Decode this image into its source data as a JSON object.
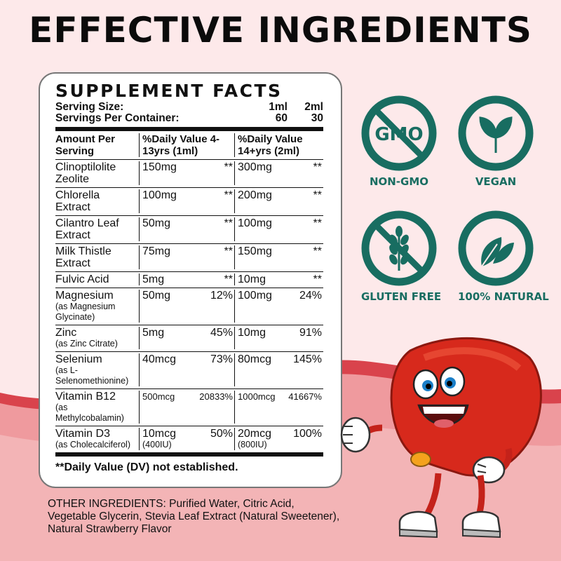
{
  "headline": "EFFECTIVE INGREDIENTS",
  "facts": {
    "title": "SUPPLEMENT FACTS",
    "serving_size_label": "Serving Size:",
    "serving_size_1": "1ml",
    "serving_size_2": "2ml",
    "servings_label": "Servings Per Container:",
    "servings_1": "60",
    "servings_2": "30",
    "col1_header": "Amount Per Serving",
    "col2_header": "%Daily Value 4-13yrs (1ml)",
    "col3_header": "%Daily Value 14+yrs (2ml)",
    "rows": [
      {
        "name": "Clinoptilolite Zeolite",
        "sub": "",
        "amt1": "150mg",
        "dv1": "**",
        "amt2": "300mg",
        "dv2": "**"
      },
      {
        "name": "Chlorella Extract",
        "sub": "",
        "amt1": "100mg",
        "dv1": "**",
        "amt2": "200mg",
        "dv2": "**"
      },
      {
        "name": "Cilantro Leaf Extract",
        "sub": "",
        "amt1": "50mg",
        "dv1": "**",
        "amt2": "100mg",
        "dv2": "**"
      },
      {
        "name": "Milk Thistle Extract",
        "sub": "",
        "amt1": "75mg",
        "dv1": "**",
        "amt2": "150mg",
        "dv2": "**"
      },
      {
        "name": "Fulvic Acid",
        "sub": "",
        "amt1": "5mg",
        "dv1": "**",
        "amt2": "10mg",
        "dv2": "**"
      },
      {
        "name": "Magnesium",
        "sub": "(as Magnesium Glycinate)",
        "amt1": "50mg",
        "dv1": "12%",
        "amt2": "100mg",
        "dv2": "24%"
      },
      {
        "name": "Zinc",
        "sub": "(as Zinc Citrate)",
        "amt1": "5mg",
        "dv1": "45%",
        "amt2": "10mg",
        "dv2": "91%"
      },
      {
        "name": "Selenium",
        "sub": "(as L-Selenomethionine)",
        "amt1": "40mcg",
        "dv1": "73%",
        "amt2": "80mcg",
        "dv2": "145%"
      },
      {
        "name": "Vitamin B12",
        "sub": "(as Methylcobalamin)",
        "amt1": "500mcg",
        "dv1": "20833%",
        "amt2": "1000mcg",
        "dv2": "41667%"
      },
      {
        "name": "Vitamin D3",
        "sub": "(as Cholecalciferol)",
        "amt1": "10mcg",
        "amt1_sub": "(400IU)",
        "dv1": "50%",
        "amt2": "20mcg",
        "amt2_sub": "(800IU)",
        "dv2": "100%"
      }
    ],
    "footnote": "**Daily Value (DV) not established."
  },
  "other_ingredients": {
    "label": "OTHER INGREDIENTS:",
    "text": " Purified Water, Citric Acid, Vegetable Glycerin, Stevia Leaf Extract (Natural Sweetener), Natural Strawberry Flavor"
  },
  "badges": {
    "non_gmo": {
      "icon_text": "GMO",
      "label": "NON-GMO",
      "icon": "no-gmo-icon"
    },
    "vegan": {
      "label": "VEGAN",
      "icon": "vegan-leaf-icon"
    },
    "gluten_free": {
      "label": "GLUTEN FREE",
      "icon": "no-wheat-icon"
    },
    "natural": {
      "label": "100% NATURAL",
      "icon": "leaves-icon"
    }
  },
  "colors": {
    "badge_teal": "#186d61",
    "background_pink": "#fde9ea",
    "wave_red": "#d9434c",
    "wave_pink": "#ef9a9e",
    "liver_red": "#d7291c"
  }
}
